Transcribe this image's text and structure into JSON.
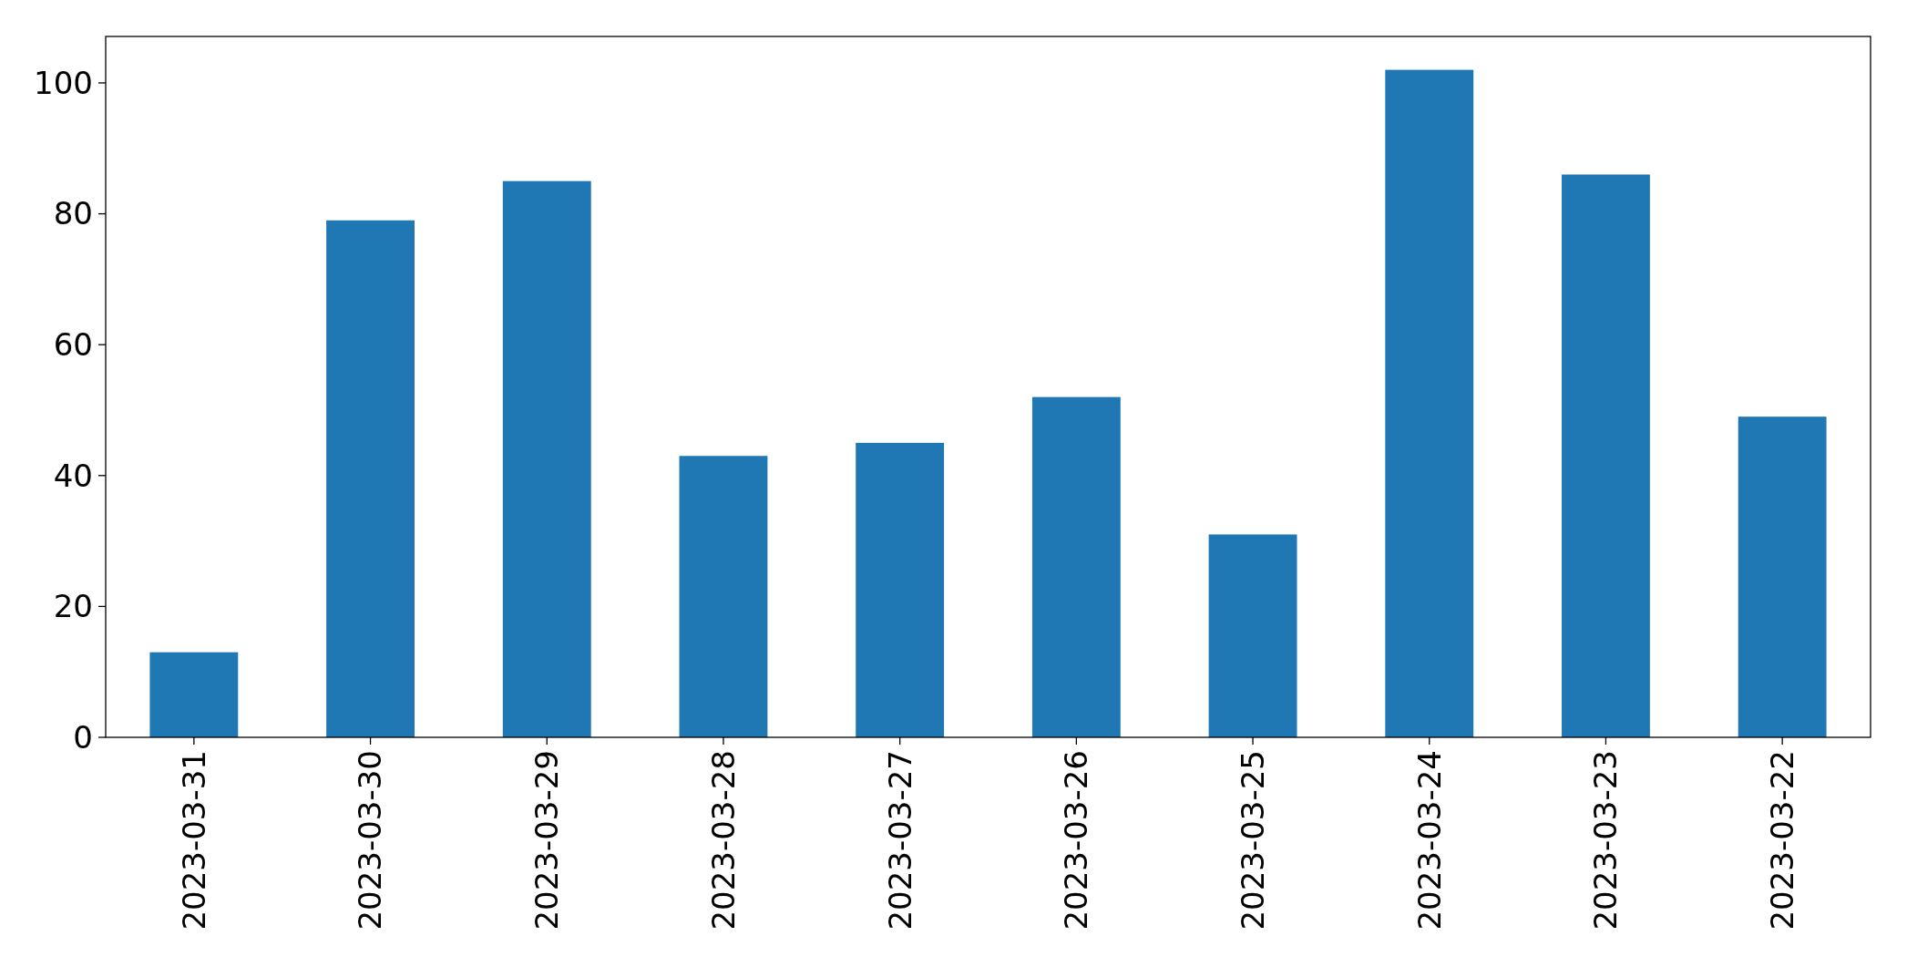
{
  "chart_data": {
    "type": "bar",
    "categories": [
      "2023-03-31",
      "2023-03-30",
      "2023-03-29",
      "2023-03-28",
      "2023-03-27",
      "2023-03-26",
      "2023-03-25",
      "2023-03-24",
      "2023-03-23",
      "2023-03-22"
    ],
    "values": [
      13,
      79,
      85,
      43,
      45,
      52,
      31,
      102,
      86,
      49
    ],
    "color": "#1f77b4",
    "ylim": [
      0,
      107.1
    ],
    "yticks": [
      0,
      20,
      40,
      60,
      80,
      100
    ],
    "grid": false
  }
}
